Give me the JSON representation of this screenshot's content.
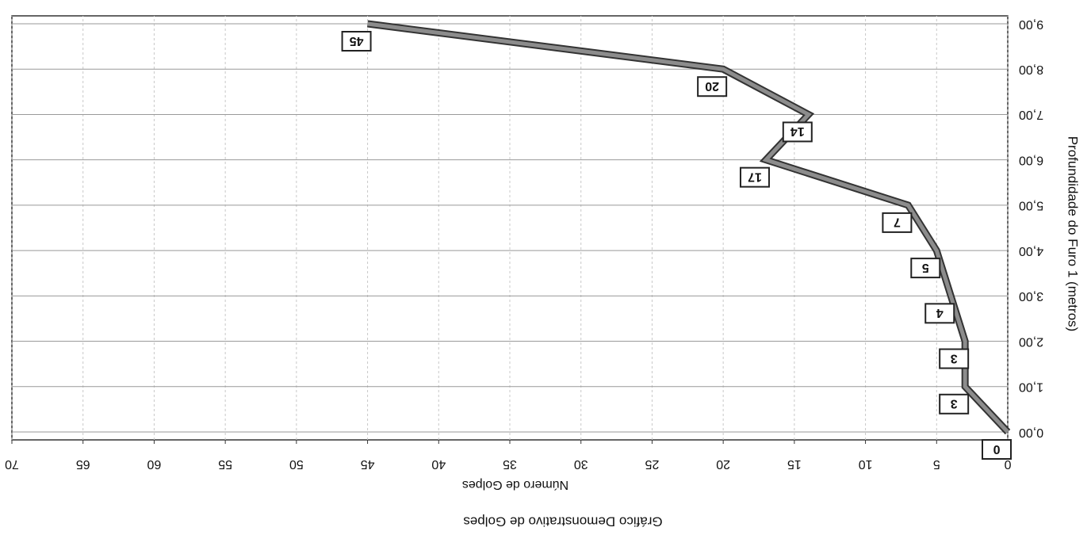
{
  "chart_data": {
    "type": "line",
    "orientation": "horizontal",
    "title": "Gráfico Demonstrativo de Golpes",
    "x_label": "Número de Golpes",
    "y_label": "Profundidade do Furo 1 (metros)",
    "categories": [
      "0,00",
      "1,00",
      "2,00",
      "3,00",
      "4,00",
      "5,00",
      "6,00",
      "7,00",
      "8,00",
      "9,00"
    ],
    "values": [
      0,
      3,
      3,
      4,
      5,
      7,
      17,
      14,
      20,
      45
    ],
    "color": "#8c8c8c",
    "xlim": [
      0,
      70
    ],
    "xticks": [
      0,
      5,
      10,
      15,
      20,
      25,
      30,
      35,
      40,
      45,
      50,
      55,
      60,
      65,
      70
    ],
    "grid": true,
    "rotated_180": true
  }
}
